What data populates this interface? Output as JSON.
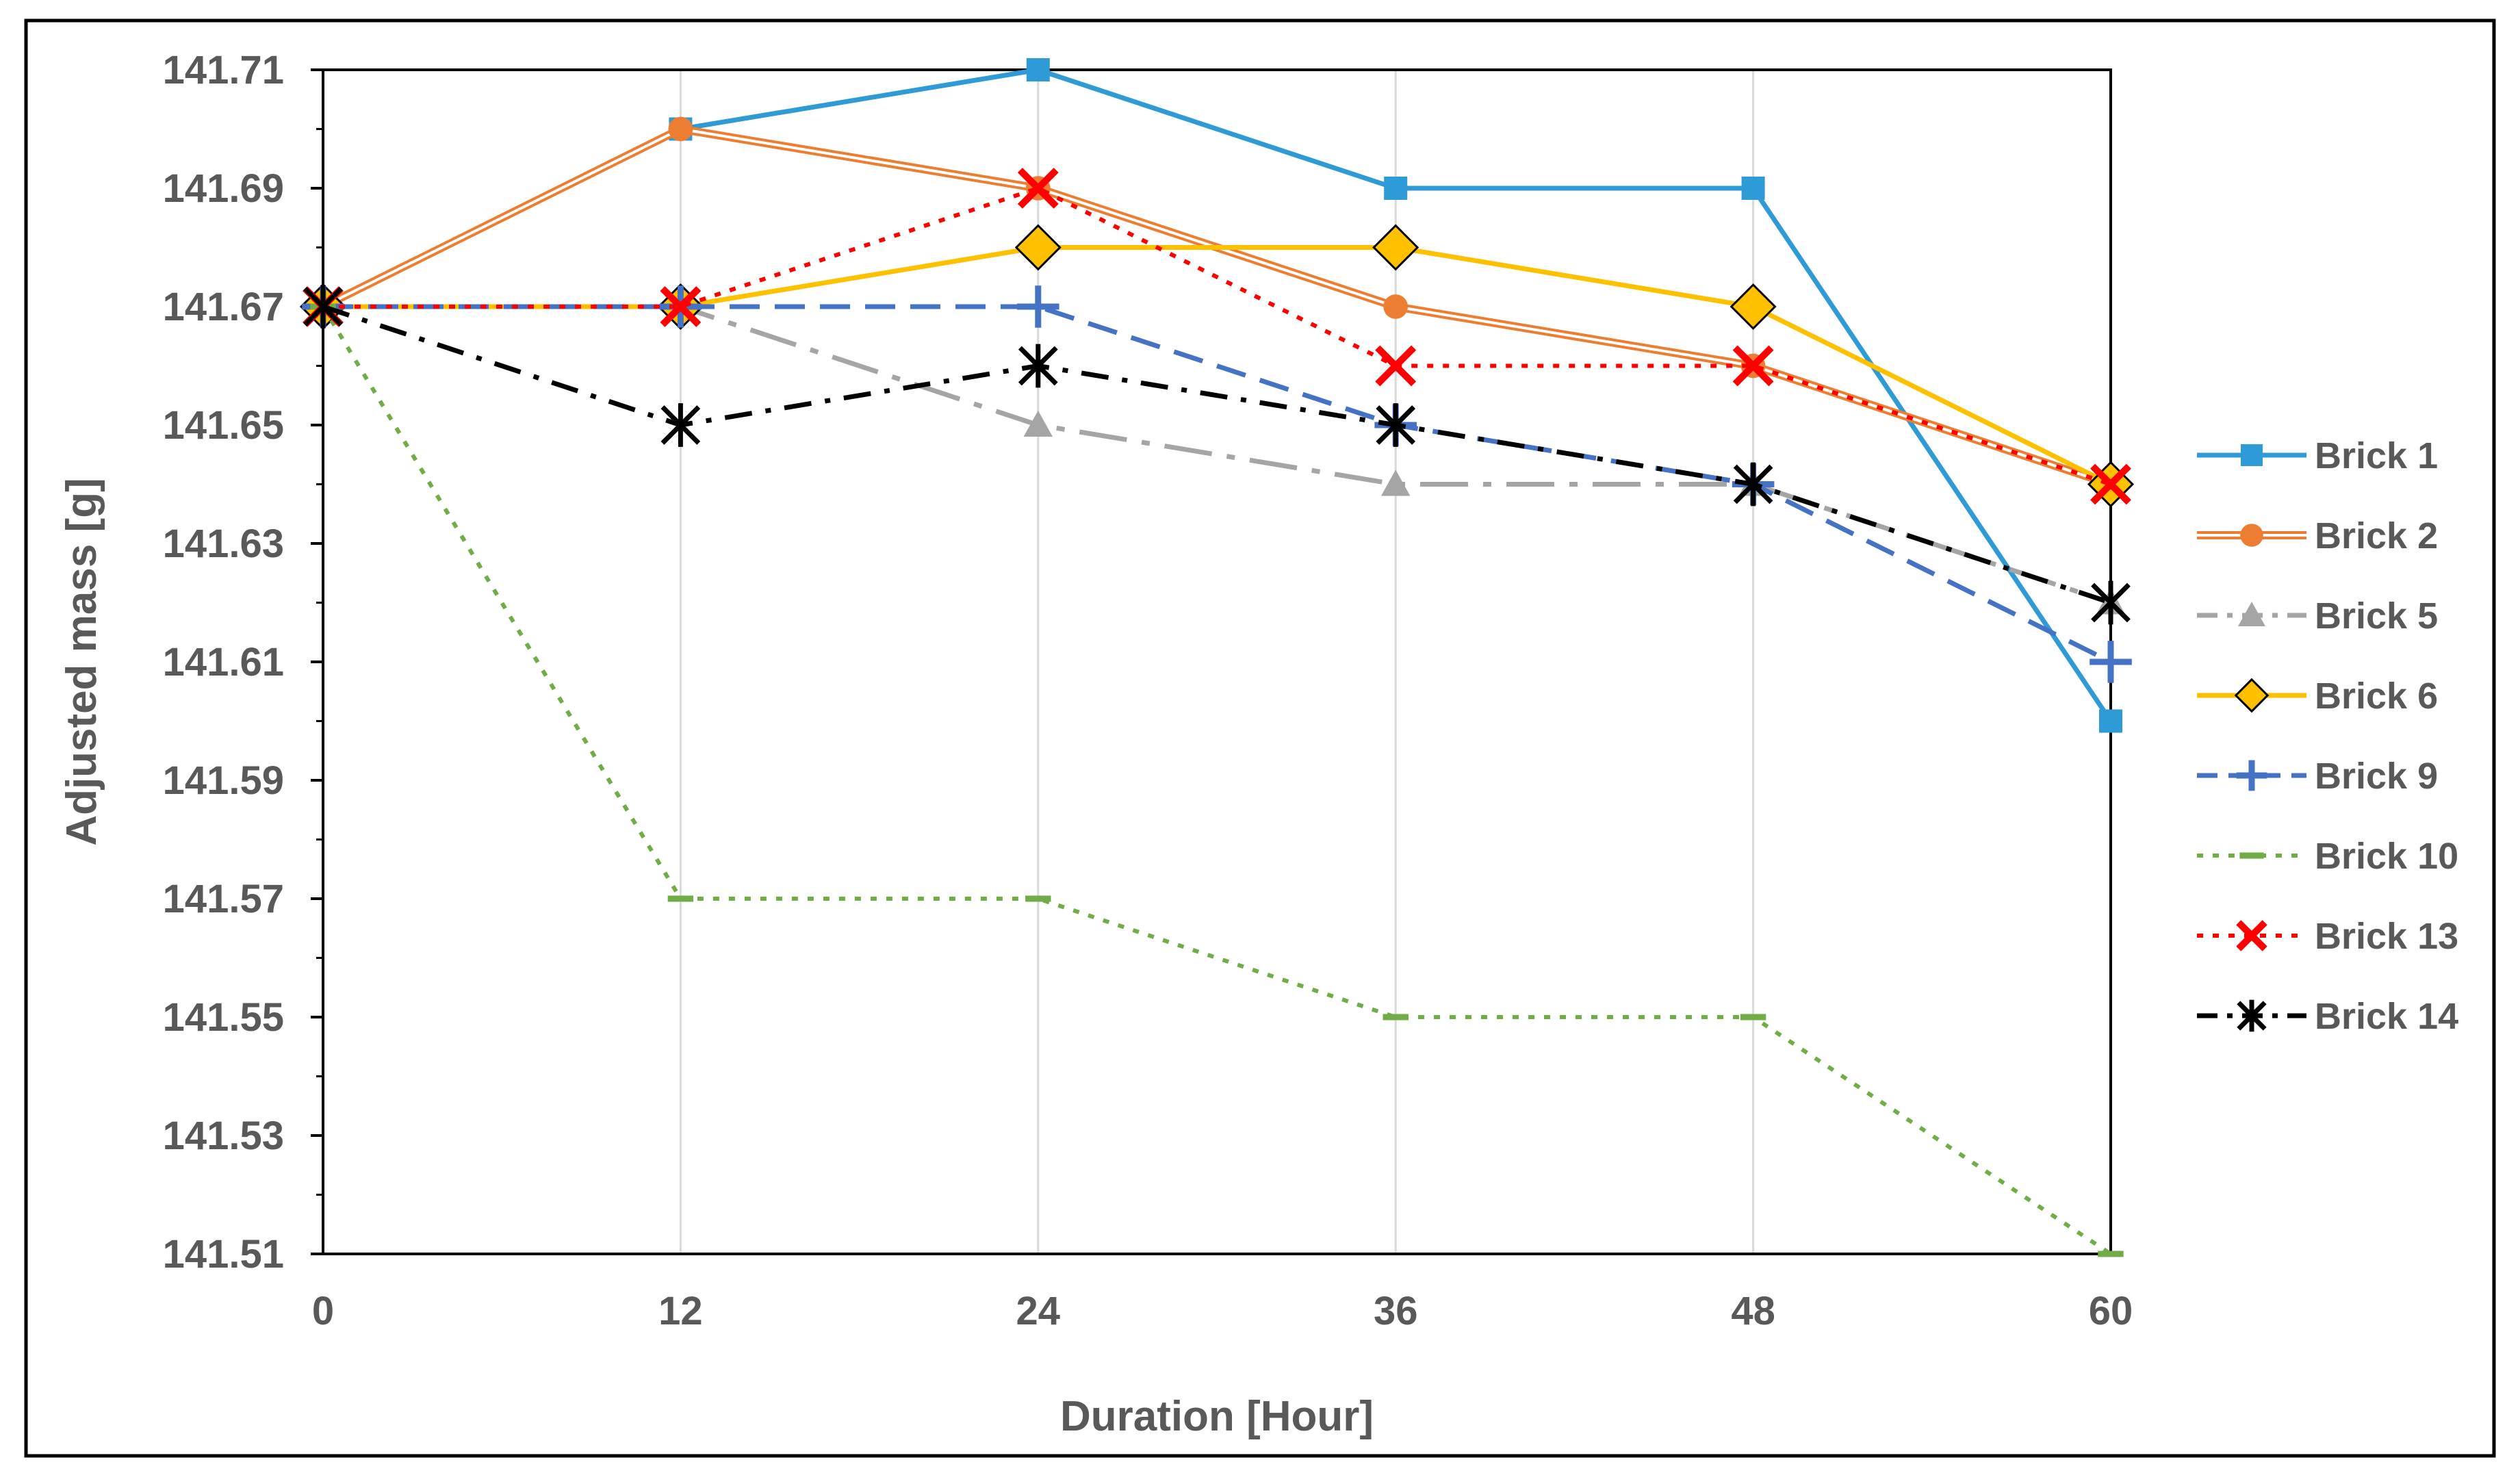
{
  "chart_data": {
    "type": "line",
    "title": "",
    "xlabel": "Duration [Hour]",
    "ylabel": "Adjusted mass [g]",
    "x": [
      0,
      12,
      24,
      36,
      48,
      60
    ],
    "x_tick_labels": [
      "0",
      "12",
      "24",
      "36",
      "48",
      "60"
    ],
    "xlim": [
      0,
      60
    ],
    "ylim": [
      141.51,
      141.71
    ],
    "y_tick_labels": [
      "141.71",
      "141.69",
      "141.67",
      "141.65",
      "141.63",
      "141.61",
      "141.59",
      "141.57",
      "141.55",
      "141.53",
      "141.51"
    ],
    "y_tick_values": [
      141.71,
      141.69,
      141.67,
      141.65,
      141.63,
      141.61,
      141.59,
      141.57,
      141.55,
      141.53,
      141.51
    ],
    "grid": "vertical",
    "legend_position": "right",
    "series": [
      {
        "name": "Brick 1",
        "color": "#2E9BD6",
        "marker": "square",
        "line": "solid",
        "values": [
          141.67,
          141.7,
          141.71,
          141.69,
          141.69,
          141.6
        ]
      },
      {
        "name": "Brick 2",
        "color": "#ED7D31",
        "marker": "circle",
        "line": "double",
        "values": [
          141.67,
          141.7,
          141.69,
          141.67,
          141.66,
          141.64
        ]
      },
      {
        "name": "Brick 5",
        "color": "#A5A5A5",
        "marker": "triangle",
        "line": "long-dash-dot",
        "values": [
          141.67,
          141.67,
          141.65,
          141.64,
          141.64,
          141.62
        ]
      },
      {
        "name": "Brick 6",
        "color": "#FFC000",
        "marker": "diamond",
        "line": "solid",
        "values": [
          141.67,
          141.67,
          141.68,
          141.68,
          141.67,
          141.64
        ]
      },
      {
        "name": "Brick 9",
        "color": "#4472C4",
        "marker": "plus",
        "line": "dash",
        "values": [
          141.67,
          141.67,
          141.67,
          141.65,
          141.64,
          141.61
        ]
      },
      {
        "name": "Brick 10",
        "color": "#70AD47",
        "marker": "dash",
        "line": "dot",
        "values": [
          141.67,
          141.57,
          141.57,
          141.55,
          141.55,
          141.51
        ]
      },
      {
        "name": "Brick 13",
        "color": "#FF0000",
        "marker": "x",
        "line": "dot",
        "values": [
          141.67,
          141.67,
          141.69,
          141.66,
          141.66,
          141.64
        ]
      },
      {
        "name": "Brick 14",
        "color": "#000000",
        "marker": "star",
        "line": "dash-dot",
        "values": [
          141.67,
          141.65,
          141.66,
          141.65,
          141.64,
          141.62
        ]
      }
    ]
  }
}
